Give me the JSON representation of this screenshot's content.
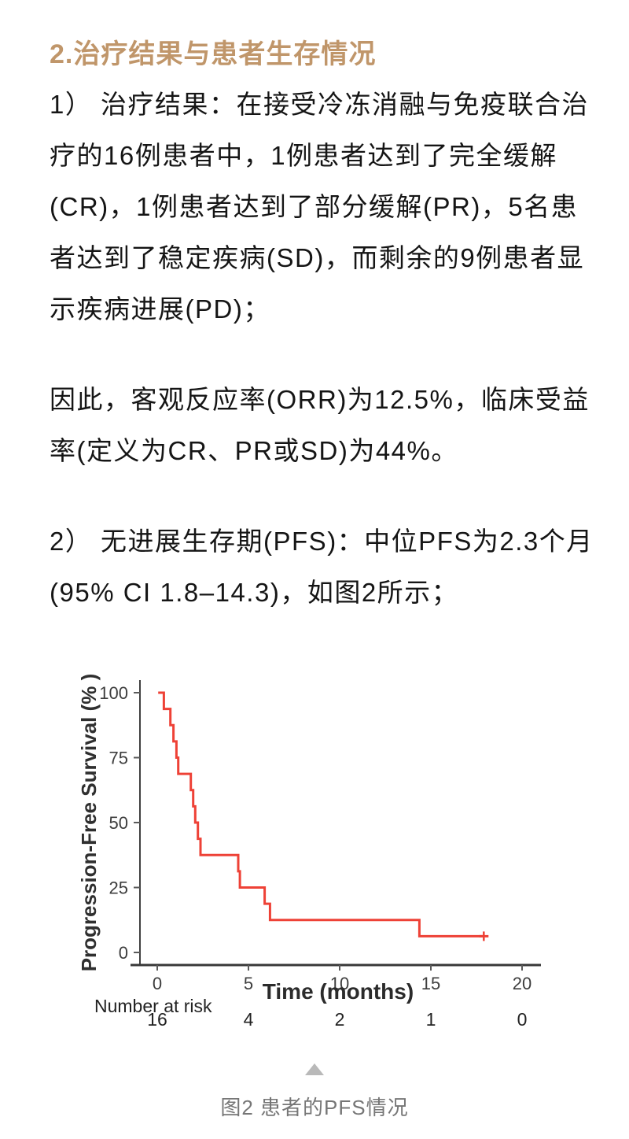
{
  "heading": "2.治疗结果与患者生存情况",
  "paragraphs": [
    {
      "lines": [
        "1） 治疗结果：在接受冷冻消融与免疫联合治",
        "疗的16例患者中，1例患者达到了完全缓解",
        "(CR)，1例患者达到了部分缓解(PR)，5名患",
        "者达到了稳定疾病(SD)，而剩余的9例患者显",
        "示疾病进展(PD)；"
      ]
    },
    {
      "lines": [
        "因此，客观反应率(ORR)为12.5%，临床受益",
        "率(定义为CR、PR或SD)为44%。"
      ]
    },
    {
      "lines": [
        "2） 无进展生存期(PFS)：中位PFS为2.3个月",
        "(95% CI 1.8–14.3)，如图2所示；"
      ]
    }
  ],
  "chart_data": {
    "type": "line",
    "subtype": "kaplan-meier-step",
    "title": "",
    "xlabel": "Time (months)",
    "ylabel": "Progression-Free Survival (% )",
    "xticks": [
      0,
      5,
      10,
      15,
      20
    ],
    "yticks": [
      0,
      25,
      50,
      75,
      100
    ],
    "xlim": [
      0,
      21
    ],
    "ylim": [
      0,
      100
    ],
    "grid": false,
    "legend": "none",
    "series": [
      {
        "name": "PFS",
        "color": "#ee4136",
        "steps": [
          [
            0.05,
            100
          ],
          [
            0.36,
            93.75
          ],
          [
            0.72,
            87.5
          ],
          [
            0.89,
            81.25
          ],
          [
            1.05,
            75
          ],
          [
            1.15,
            68.75
          ],
          [
            1.84,
            62.5
          ],
          [
            1.97,
            56.25
          ],
          [
            2.08,
            50
          ],
          [
            2.23,
            43.75
          ],
          [
            2.37,
            37.5
          ],
          [
            4.44,
            31.25
          ],
          [
            4.53,
            25
          ],
          [
            5.89,
            18.75
          ],
          [
            6.18,
            12.5
          ],
          [
            14.37,
            6.25
          ]
        ],
        "censor": {
          "t": 17.9,
          "p": 6.25,
          "marker": "plus"
        }
      }
    ],
    "number_at_risk": {
      "label": "Number at risk",
      "times": [
        0,
        5,
        10,
        15,
        20
      ],
      "values": [
        16,
        4,
        2,
        1,
        0
      ]
    },
    "median_pfs_months": 2.3,
    "ci95": "1.8–14.3"
  },
  "footer": {
    "scroll_icon": "triangle-up",
    "caption": "图2 患者的PFS情况"
  },
  "colors": {
    "heading": "#c0966a",
    "body_text": "#151515",
    "curve_red": "#ee4136",
    "axis": "#3f3f3f",
    "caption_grey": "#767676",
    "triangle_grey": "#b9b9b9"
  }
}
